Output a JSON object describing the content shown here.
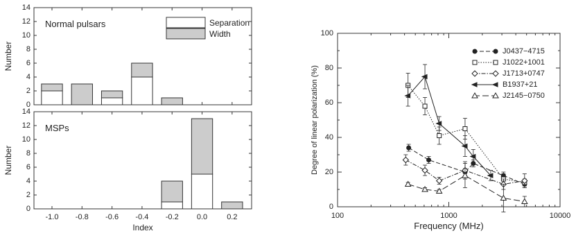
{
  "chart_data": [
    {
      "type": "bar",
      "stacked": true,
      "panel_label": "Normal pulsars",
      "categories": [
        "-1.0",
        "-0.8",
        "-0.6",
        "-0.4",
        "-0.2",
        "0.0",
        "0.2"
      ],
      "series": [
        {
          "name": "Separation",
          "values": [
            2,
            0,
            1,
            4,
            0,
            0,
            0
          ],
          "fill": "#ffffff"
        },
        {
          "name": "Width",
          "values": [
            1,
            3,
            1,
            2,
            1,
            0,
            0
          ],
          "fill": "#cccccc"
        }
      ],
      "ylabel": "Number",
      "ylim": [
        0,
        14
      ],
      "yticks": [
        "0",
        "2",
        "4",
        "6",
        "8",
        "10",
        "12",
        "14"
      ],
      "legend_position": "top-right"
    },
    {
      "type": "bar",
      "stacked": true,
      "panel_label": "MSPs",
      "categories": [
        "-1.0",
        "-0.8",
        "-0.6",
        "-0.4",
        "-0.2",
        "0.0",
        "0.2"
      ],
      "series": [
        {
          "name": "Separation",
          "values": [
            0,
            0,
            0,
            0,
            1,
            5,
            0
          ],
          "fill": "#ffffff"
        },
        {
          "name": "Width",
          "values": [
            0,
            0,
            0,
            0,
            3,
            8,
            1
          ],
          "fill": "#cccccc"
        }
      ],
      "xlabel": "Index",
      "ylabel": "Number",
      "ylim": [
        0,
        14
      ],
      "yticks": [
        "0",
        "2",
        "4",
        "6",
        "8",
        "10",
        "12",
        "14"
      ],
      "xticks": [
        "-1.0",
        "-0.8",
        "-0.6",
        "-0.4",
        "-0.2",
        "0.0",
        "0.2"
      ]
    },
    {
      "type": "line",
      "xscale": "log",
      "xlabel": "Frequency (MHz)",
      "ylabel": "Degree of linear polarization (%)",
      "xlim": [
        100,
        10000
      ],
      "ylim": [
        0,
        100
      ],
      "xticks": [
        "100",
        "1000",
        "10000"
      ],
      "yticks": [
        "0",
        "20",
        "40",
        "60",
        "80",
        "100"
      ],
      "legend_position": "top-right",
      "series": [
        {
          "name": "J0437−4715",
          "marker": "filled-circle",
          "dash": "6,3",
          "x": [
            436,
            660,
            1400,
            1660,
            3100,
            4800
          ],
          "y": [
            34,
            27,
            20,
            25,
            18,
            13
          ],
          "err": [
            2,
            2,
            2,
            2,
            2,
            2
          ]
        },
        {
          "name": "J1022+1001",
          "marker": "open-square",
          "dash": "1.5,2",
          "x": [
            430,
            610,
            820,
            1400,
            3100,
            4800
          ],
          "y": [
            70,
            58,
            41,
            45,
            16,
            14
          ],
          "err": [
            7,
            5,
            5,
            6,
            3,
            2
          ]
        },
        {
          "name": "J1713+0747",
          "marker": "open-diamond",
          "dash": "6,2,1.5,2",
          "x": [
            410,
            610,
            820,
            1400,
            3100,
            4800
          ],
          "y": [
            27,
            21,
            15,
            21,
            13,
            15
          ],
          "err": [
            3,
            3,
            2,
            5,
            3,
            4
          ]
        },
        {
          "name": "B1937+21",
          "marker": "filled-left-triangle",
          "dash": "",
          "x": [
            430,
            610,
            820,
            1400,
            1660,
            2380
          ],
          "y": [
            64,
            75,
            48,
            35,
            29,
            18
          ],
          "err": [
            6,
            7,
            4,
            6,
            4,
            3
          ]
        },
        {
          "name": "J2145−0750",
          "marker": "open-triangle",
          "dash": "9,4",
          "x": [
            430,
            610,
            820,
            1400,
            3100,
            4800
          ],
          "y": [
            13,
            10,
            9,
            18,
            5,
            3
          ],
          "err": [
            1,
            1,
            1,
            7,
            8,
            3
          ]
        }
      ]
    }
  ]
}
